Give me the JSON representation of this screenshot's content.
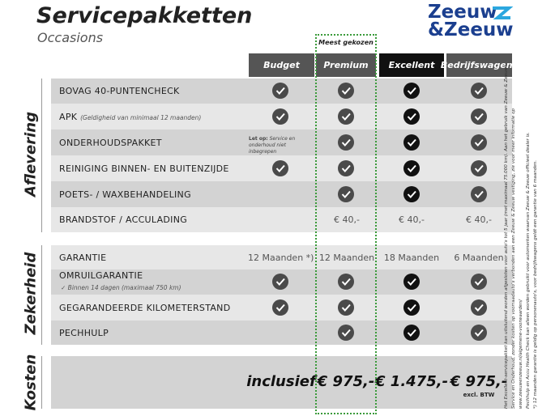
{
  "header": {
    "title": "Servicepakketten",
    "subtitle": "Occasions",
    "logo": [
      "Zeeuw",
      "&Zeeuw"
    ]
  },
  "badge": "Meest gekozen",
  "columns": [
    "Budget",
    "Premium",
    "Excellent",
    "Bedrijfswagens"
  ],
  "sections": [
    {
      "label": "Aflevering",
      "rows": [
        {
          "label": "BOVAG 40-PUNTENCHECK"
        },
        {
          "label": "APK",
          "note": "(Geldigheid van minimaal 12 maanden)"
        },
        {
          "label": "ONDERHOUDSPAKKET",
          "cells": [
            {
              "emphasis": "Let op:",
              "text": "Service en onderhoud niet inbegrepen"
            },
            null,
            null,
            null
          ]
        },
        {
          "label": "REINIGING BINNEN- EN BUITENZIJDE"
        },
        {
          "label": "POETS- / WAXBEHANDELING"
        },
        {
          "label": "BRANDSTOF / ACCULADING",
          "cells": [
            null,
            "€ 40,-",
            "€ 40,-",
            "€ 40,-"
          ]
        }
      ]
    },
    {
      "label": "Zekerheid",
      "rows": [
        {
          "label": "GARANTIE",
          "cells": [
            "12 Maanden *)",
            "12 Maanden",
            "18 Maanden",
            "6 Maanden"
          ]
        },
        {
          "label": "OMRUILGARANTIE",
          "note": "✓  Binnen 14 dagen (maximaal 750 km)"
        },
        {
          "label": "GEGARANDEERDE KILOMETERSTAND"
        },
        {
          "label": "PECHHULP"
        }
      ]
    },
    {
      "label": "Kosten",
      "rows": [
        {
          "cells": [
            "inclusief",
            "€ 975,-",
            "€ 1.475,-",
            "€ 975,-"
          ],
          "footnote": "excl. BTW"
        }
      ]
    }
  ],
  "disclaimer": [
    "Het Excellent-servicepakket kan uitsluitend worden afgesloten voor auto's tot 5 jaar (met maximaal 75.000 km). Aan het gebruik van Zeeuw & Zeeuw+",
    "Service en Onderhoud, zonder kosten op voorraadauto's verbonden aan een Zeeuw & Zeeuw vestiging, zie voor meer informatie op www.zeeuwenzeeuw.nl/algemene-voorwaarden/",
    "Pechhulp en Accu Health Check kan alleen worden gebruikt voor automerken waarvan Zeeuw & Zeeuw officieel dealer is.",
    "*) 12 maanden garantie is geldig op personenauto's, voor bedrijfswagens geldt een garantie van 6 maanden."
  ]
}
